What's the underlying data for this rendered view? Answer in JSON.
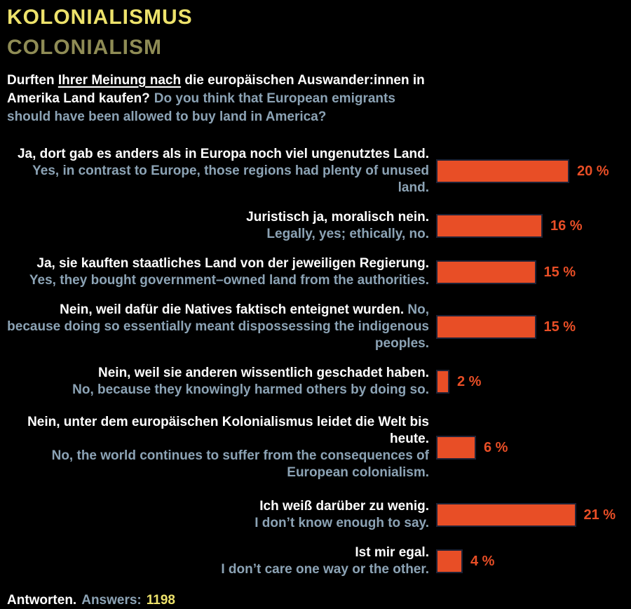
{
  "header": {
    "title_de": "KOLONIALISMUS",
    "title_en": "COLONIALISM"
  },
  "question": {
    "de_before": "Durften ",
    "de_underline": "Ihrer Meinung nach",
    "de_after": " die europäischen Auswander:innen in Amerika Land kaufen?",
    "en": "Do you think that European emigrants should have been allowed to buy land in America?"
  },
  "footer": {
    "label_de": "Antworten.",
    "label_en": "Answers:",
    "count": "1198"
  },
  "colors": {
    "background": "#000000",
    "title_yellow": "#EDE26B",
    "title_olive": "#8F8C55",
    "text_white": "#FFFFFF",
    "text_blue": "#8CA3B5",
    "bar_orange": "#E84E26",
    "bar_border": "#1E2337"
  },
  "chart_data": {
    "type": "bar",
    "orientation": "horizontal",
    "title": "KOLONIALISMUS / COLONIALISM",
    "unit": "%",
    "xlim": [
      0,
      25
    ],
    "grid": false,
    "legend": false,
    "answers_total": 1198,
    "categories": [
      "Ja, dort gab es anders als in Europa noch viel ungenutztes Land.",
      "Juristisch ja, moralisch nein.",
      "Ja, sie kauften staatliches Land von der jeweiligen Regierung.",
      "Nein, weil dafür die Natives faktisch enteignet wurden.",
      "Nein, weil sie anderen wissentlich geschadet haben.",
      "Nein, unter dem europäischen Kolonialismus leidet die Welt bis heute.",
      "Ich weiß darüber zu wenig.",
      "Ist mir egal."
    ],
    "values": [
      20,
      16,
      15,
      15,
      2,
      6,
      21,
      4
    ],
    "value_labels": [
      "20 %",
      "16 %",
      "15 %",
      "15 %",
      "2 %",
      "6 %",
      "21 %",
      "4 %"
    ],
    "rows": [
      {
        "de": "Ja, dort gab es anders als in Europa noch viel ungenutztes Land.",
        "en": "Yes, in contrast to Europe, those regions had plenty of unused land.",
        "pct": 20,
        "label": "20 %",
        "inline": false
      },
      {
        "de": "Juristisch ja, moralisch nein.",
        "en": "Legally, yes; ethically, no.",
        "pct": 16,
        "label": "16 %",
        "inline": false
      },
      {
        "de": "Ja, sie kauften staatliches Land von der jeweiligen Regierung.",
        "en": "Yes, they bought government–owned land from the authorities.",
        "pct": 15,
        "label": "15 %",
        "inline": false
      },
      {
        "de": "Nein, weil dafür die Natives faktisch enteignet wurden.",
        "en": "No, because doing so essentially meant dispossessing the indigenous peoples.",
        "pct": 15,
        "label": "15 %",
        "inline": true
      },
      {
        "de": "Nein, weil sie anderen wissentlich geschadet haben.",
        "en": "No, because they knowingly harmed others by doing so.",
        "pct": 2,
        "label": "2 %",
        "inline": false
      },
      {
        "de": "Nein, unter dem europäischen Kolonialismus leidet die Welt bis heute.",
        "en": "No, the world continues to suffer from the consequences of European colonialism.",
        "pct": 6,
        "label": "6 %",
        "inline": false
      },
      {
        "de": "Ich weiß darüber zu wenig.",
        "en": "I don’t know enough to say.",
        "pct": 21,
        "label": "21 %",
        "inline": false
      },
      {
        "de": "Ist mir egal.",
        "en": "I don’t care one way or the other.",
        "pct": 4,
        "label": "4 %",
        "inline": false
      }
    ]
  }
}
